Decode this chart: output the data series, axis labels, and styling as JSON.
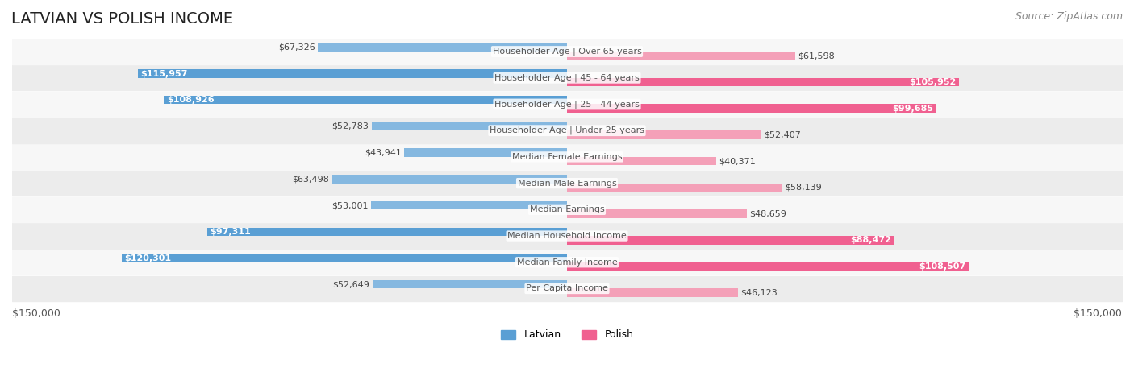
{
  "title": "LATVIAN VS POLISH INCOME",
  "source": "Source: ZipAtlas.com",
  "categories": [
    "Per Capita Income",
    "Median Family Income",
    "Median Household Income",
    "Median Earnings",
    "Median Male Earnings",
    "Median Female Earnings",
    "Householder Age | Under 25 years",
    "Householder Age | 25 - 44 years",
    "Householder Age | 45 - 64 years",
    "Householder Age | Over 65 years"
  ],
  "latvian_values": [
    52649,
    120301,
    97311,
    53001,
    63498,
    43941,
    52783,
    108926,
    115957,
    67326
  ],
  "polish_values": [
    46123,
    108507,
    88472,
    48659,
    58139,
    40371,
    52407,
    99685,
    105952,
    61598
  ],
  "latvian_color_bar": "#85b8e0",
  "latvian_color_bar_highlight": "#5a9fd4",
  "polish_color_bar": "#f4a0b8",
  "polish_color_bar_highlight": "#f06090",
  "max_value": 150000,
  "xlabel_left": "$150,000",
  "xlabel_right": "$150,000",
  "legend_latvian": "Latvian",
  "legend_polish": "Polish",
  "background_color": "#f5f5f5",
  "bar_background_color": "#e8e8e8",
  "title_fontsize": 14,
  "label_fontsize": 9,
  "source_fontsize": 9
}
